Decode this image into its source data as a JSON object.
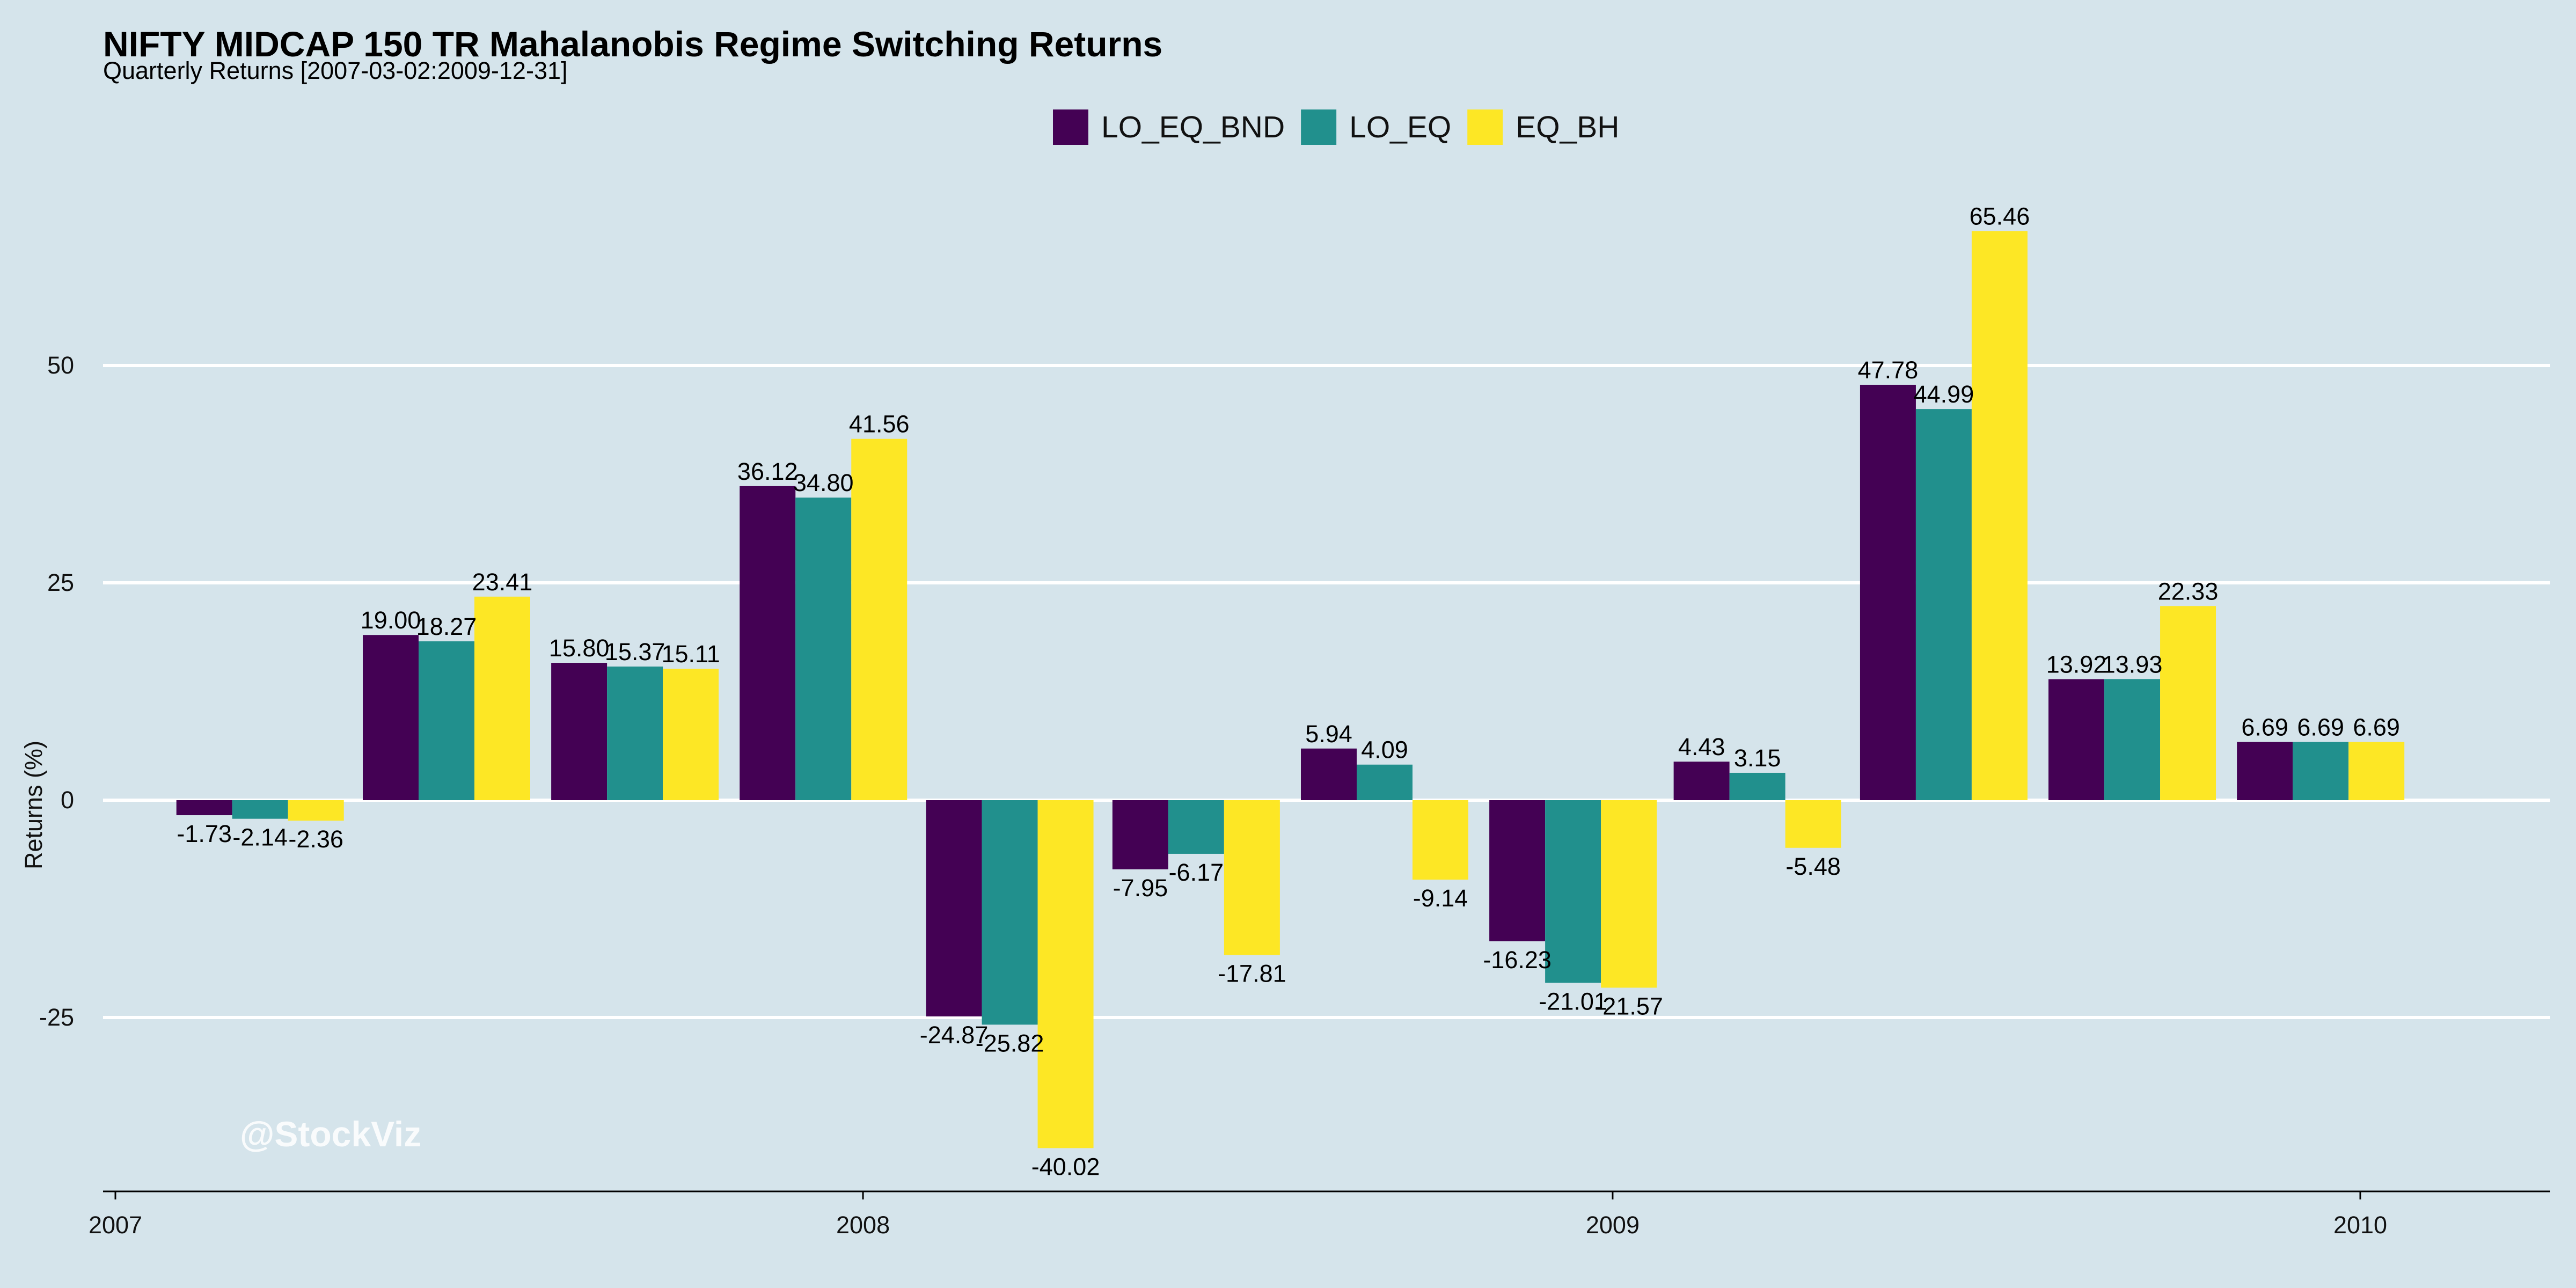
{
  "chart_data": {
    "type": "bar",
    "title": "NIFTY MIDCAP 150 TR Mahalanobis Regime Switching Returns",
    "subtitle": "Quarterly Returns [2007-03-02:2009-12-31]",
    "xlabel": "",
    "ylabel": "Returns (%)",
    "ylim": [
      -45,
      72
    ],
    "yticks": [
      -25,
      0,
      25,
      50
    ],
    "grid": "horizontal",
    "legend_position": "top-center",
    "x_axis_type": "date",
    "xlim": [
      "2007-01-01",
      "2010-04-01"
    ],
    "xticks": [
      "2007",
      "2008",
      "2009",
      "2010"
    ],
    "categories": [
      "2007-03-31",
      "2007-06-30",
      "2007-09-30",
      "2007-12-31",
      "2008-03-31",
      "2008-06-30",
      "2008-09-30",
      "2008-12-31",
      "2009-03-31",
      "2009-06-30",
      "2009-09-30",
      "2009-12-31"
    ],
    "series": [
      {
        "name": "LO_EQ_BND",
        "color": "#440154",
        "values": [
          -1.73,
          19.0,
          15.8,
          36.12,
          -24.87,
          -7.95,
          5.94,
          -16.23,
          4.43,
          47.78,
          13.92,
          6.69
        ]
      },
      {
        "name": "LO_EQ",
        "color": "#21908d",
        "values": [
          -2.14,
          18.27,
          15.37,
          34.8,
          -25.82,
          -6.17,
          4.09,
          -21.01,
          3.15,
          44.99,
          13.93,
          6.69
        ]
      },
      {
        "name": "EQ_BH",
        "color": "#fde725",
        "values": [
          -2.36,
          23.41,
          15.11,
          41.56,
          -40.02,
          -17.81,
          -9.14,
          -21.57,
          -5.48,
          65.46,
          22.33,
          6.69
        ]
      }
    ],
    "data_labels": [
      {
        "text": "-1.73",
        "series": 0,
        "index": 0
      },
      {
        "text": "-2.14",
        "series": 1,
        "index": 0
      },
      {
        "text": "-2.36",
        "series": 2,
        "index": 0
      },
      {
        "text": "19.00",
        "series": 0,
        "index": 1
      },
      {
        "text": "18.27",
        "series": 1,
        "index": 1
      },
      {
        "text": "23.41",
        "series": 2,
        "index": 1
      },
      {
        "text": "15.80",
        "series": 0,
        "index": 2
      },
      {
        "text": "15.37",
        "series": 1,
        "index": 2
      },
      {
        "text": "15.11",
        "series": 2,
        "index": 2
      },
      {
        "text": "36.12",
        "series": 0,
        "index": 3
      },
      {
        "text": "34.80",
        "series": 1,
        "index": 3
      },
      {
        "text": "41.56",
        "series": 2,
        "index": 3
      },
      {
        "text": "-24.87",
        "series": 0,
        "index": 4
      },
      {
        "text": "-25.82",
        "series": 1,
        "index": 4
      },
      {
        "text": "-40.02",
        "series": 2,
        "index": 4
      },
      {
        "text": "-7.95",
        "series": 0,
        "index": 5
      },
      {
        "text": "-6.17",
        "series": 1,
        "index": 5
      },
      {
        "text": "-17.81",
        "series": 2,
        "index": 5
      },
      {
        "text": "5.94",
        "series": 0,
        "index": 6
      },
      {
        "text": "4.09",
        "series": 1,
        "index": 6
      },
      {
        "text": "-9.14",
        "series": 2,
        "index": 6
      },
      {
        "text": "-16.23",
        "series": 0,
        "index": 7
      },
      {
        "text": "-21.01",
        "series": 1,
        "index": 7
      },
      {
        "text": "-21.57",
        "series": 2,
        "index": 7
      },
      {
        "text": "4.43",
        "series": 0,
        "index": 8
      },
      {
        "text": "3.15",
        "series": 1,
        "index": 8
      },
      {
        "text": "-5.48",
        "series": 2,
        "index": 8
      },
      {
        "text": "47.78",
        "series": 0,
        "index": 9
      },
      {
        "text": "44.99",
        "series": 1,
        "index": 9
      },
      {
        "text": "65.46",
        "series": 2,
        "index": 9
      },
      {
        "text": "13.92",
        "series": 0,
        "index": 10
      },
      {
        "text": "13.93",
        "series": 1,
        "index": 10
      },
      {
        "text": "22.33",
        "series": 2,
        "index": 10
      },
      {
        "text": "6.69",
        "series": 0,
        "index": 11
      },
      {
        "text": "6.69",
        "series": 1,
        "index": 11
      },
      {
        "text": "6.69",
        "series": 2,
        "index": 11
      }
    ]
  },
  "watermark": "@StockViz",
  "colors": {
    "background": "#d5e4eb",
    "grid": "#ffffff",
    "axis": "#000000"
  }
}
